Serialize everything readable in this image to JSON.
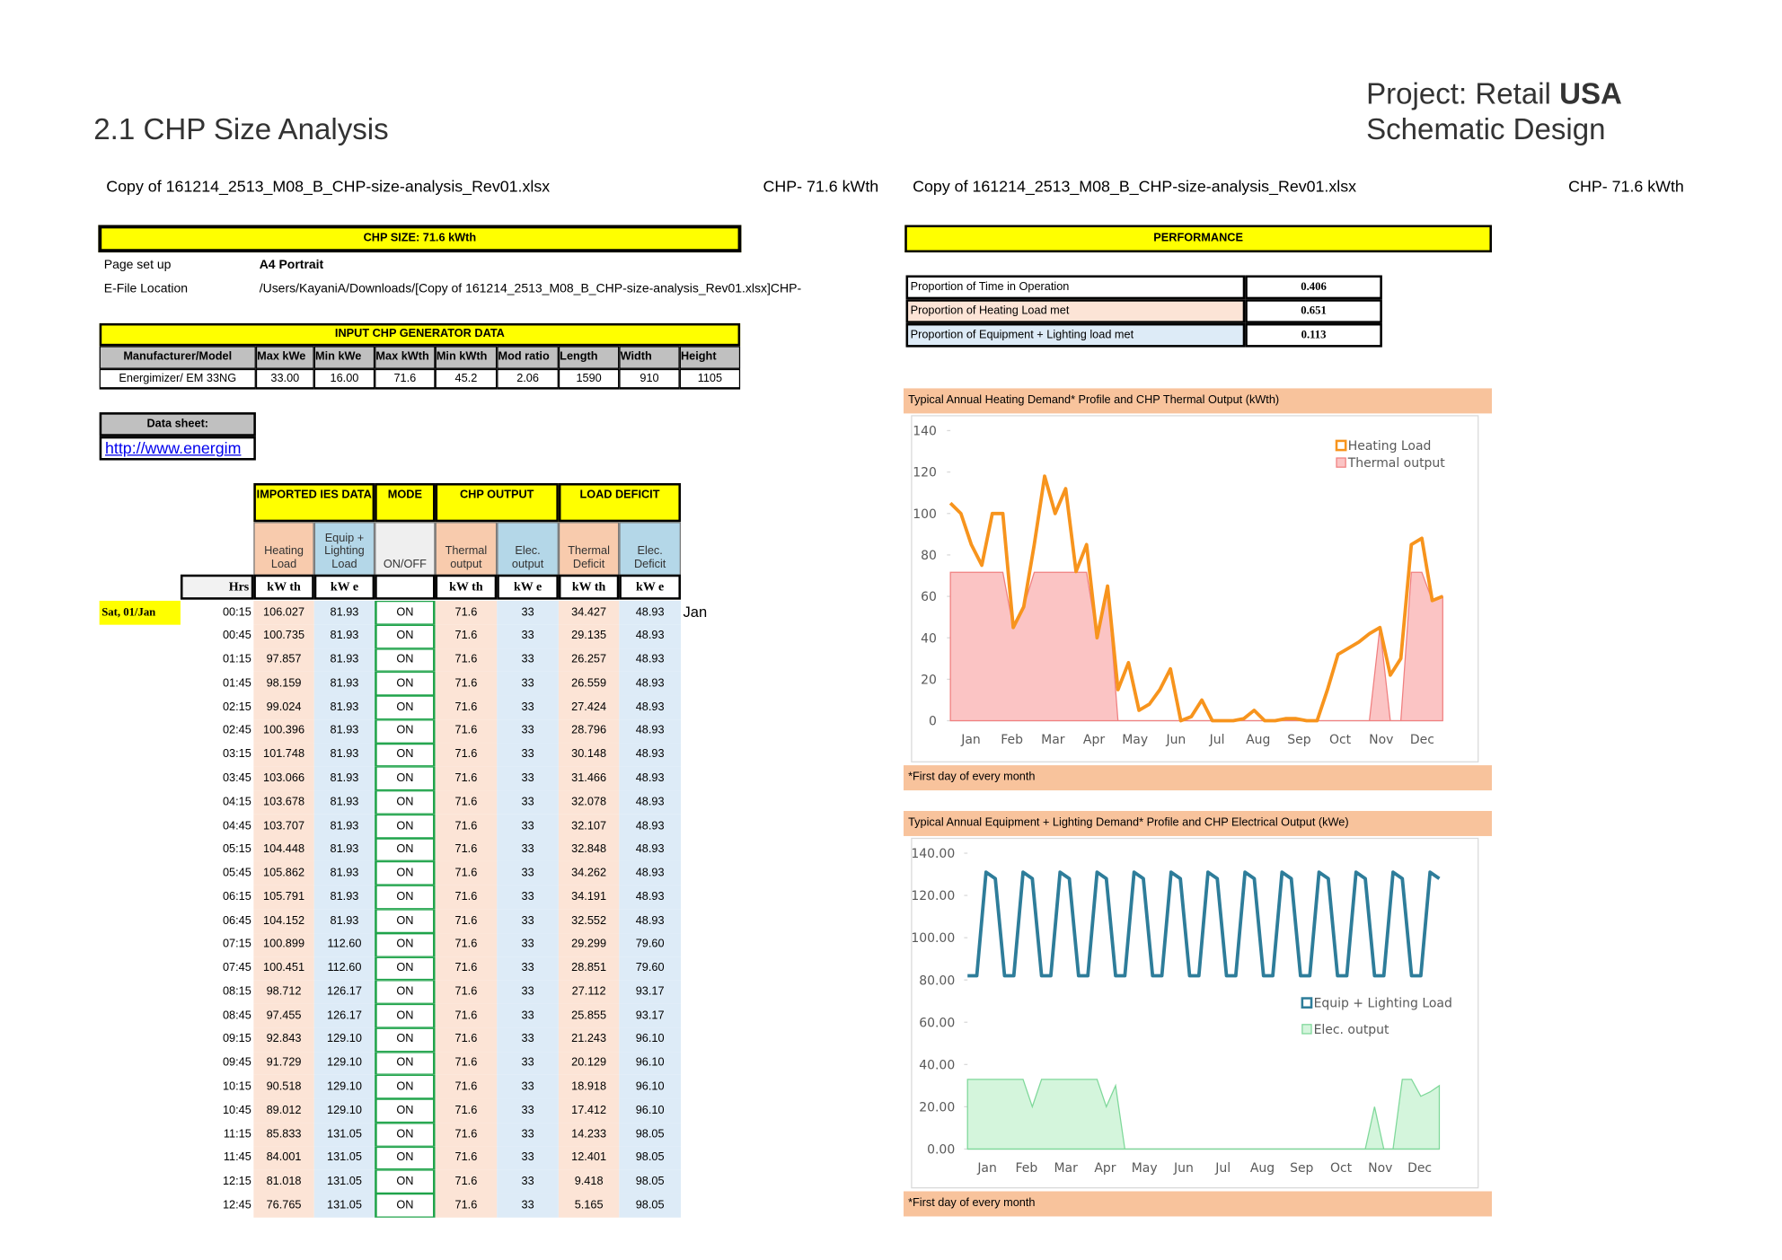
{
  "header": {
    "title": "2.1 CHP Size Analysis",
    "project": "Project: Retail",
    "project_name": "USA",
    "stage": "Schematic Design"
  },
  "file_bar": {
    "left_file": "Copy of 161214_2513_M08_B_CHP-size-analysis_Rev01.xlsx",
    "left_size": "CHP- 71.6 kWth",
    "right_file": "Copy of 161214_2513_M08_B_CHP-size-analysis_Rev01.xlsx",
    "right_size": "CHP- 71.6 kWth"
  },
  "chp_size": "CHP SIZE: 71.6 kWth",
  "setup": [
    [
      "Page set up",
      "A4 Portrait"
    ],
    [
      "E-File Location",
      "/Users/KayaniA/Downloads/[Copy of 161214_2513_M08_B_CHP-size-analysis_Rev01.xlsx]CHP-"
    ]
  ],
  "generator": {
    "title": "INPUT CHP GENERATOR DATA",
    "headers": [
      "Manufacturer/Model",
      "Max kWe",
      "Min kWe",
      "Max kWth",
      "Min kWth",
      "Mod ratio",
      "Length",
      "Width",
      "Height"
    ],
    "row": [
      "Energimizer/ EM 33NG",
      "33.00",
      "16.00",
      "71.6",
      "45.2",
      "2.06",
      "1590",
      "910",
      "1105"
    ]
  },
  "datasheet": {
    "label": "Data sheet:",
    "link": "http://www.energim"
  },
  "load_table": {
    "groups": [
      "IMPORTED IES DATA",
      "MODE",
      "CHP OUTPUT",
      "LOAD DEFICIT"
    ],
    "columns": [
      "Heating Load",
      "Equip + Lighting Load",
      "ON/OFF",
      "Thermal output",
      "Elec. output",
      "Thermal Deficit",
      "Elec. Deficit"
    ],
    "units": [
      "Hrs",
      "kW th",
      "kW e",
      "kW th",
      "kW e",
      "kW th",
      "kW e"
    ],
    "day": "Sat, 01/Jan",
    "month": "Jan",
    "rows": [
      [
        "00:15",
        "106.027",
        "81.93",
        "ON",
        "71.6",
        "33",
        "34.427",
        "48.93"
      ],
      [
        "00:45",
        "100.735",
        "81.93",
        "ON",
        "71.6",
        "33",
        "29.135",
        "48.93"
      ],
      [
        "01:15",
        "97.857",
        "81.93",
        "ON",
        "71.6",
        "33",
        "26.257",
        "48.93"
      ],
      [
        "01:45",
        "98.159",
        "81.93",
        "ON",
        "71.6",
        "33",
        "26.559",
        "48.93"
      ],
      [
        "02:15",
        "99.024",
        "81.93",
        "ON",
        "71.6",
        "33",
        "27.424",
        "48.93"
      ],
      [
        "02:45",
        "100.396",
        "81.93",
        "ON",
        "71.6",
        "33",
        "28.796",
        "48.93"
      ],
      [
        "03:15",
        "101.748",
        "81.93",
        "ON",
        "71.6",
        "33",
        "30.148",
        "48.93"
      ],
      [
        "03:45",
        "103.066",
        "81.93",
        "ON",
        "71.6",
        "33",
        "31.466",
        "48.93"
      ],
      [
        "04:15",
        "103.678",
        "81.93",
        "ON",
        "71.6",
        "33",
        "32.078",
        "48.93"
      ],
      [
        "04:45",
        "103.707",
        "81.93",
        "ON",
        "71.6",
        "33",
        "32.107",
        "48.93"
      ],
      [
        "05:15",
        "104.448",
        "81.93",
        "ON",
        "71.6",
        "33",
        "32.848",
        "48.93"
      ],
      [
        "05:45",
        "105.862",
        "81.93",
        "ON",
        "71.6",
        "33",
        "34.262",
        "48.93"
      ],
      [
        "06:15",
        "105.791",
        "81.93",
        "ON",
        "71.6",
        "33",
        "34.191",
        "48.93"
      ],
      [
        "06:45",
        "104.152",
        "81.93",
        "ON",
        "71.6",
        "33",
        "32.552",
        "48.93"
      ],
      [
        "07:15",
        "100.899",
        "112.60",
        "ON",
        "71.6",
        "33",
        "29.299",
        "79.60"
      ],
      [
        "07:45",
        "100.451",
        "112.60",
        "ON",
        "71.6",
        "33",
        "28.851",
        "79.60"
      ],
      [
        "08:15",
        "98.712",
        "126.17",
        "ON",
        "71.6",
        "33",
        "27.112",
        "93.17"
      ],
      [
        "08:45",
        "97.455",
        "126.17",
        "ON",
        "71.6",
        "33",
        "25.855",
        "93.17"
      ],
      [
        "09:15",
        "92.843",
        "129.10",
        "ON",
        "71.6",
        "33",
        "21.243",
        "96.10"
      ],
      [
        "09:45",
        "91.729",
        "129.10",
        "ON",
        "71.6",
        "33",
        "20.129",
        "96.10"
      ],
      [
        "10:15",
        "90.518",
        "129.10",
        "ON",
        "71.6",
        "33",
        "18.918",
        "96.10"
      ],
      [
        "10:45",
        "89.012",
        "129.10",
        "ON",
        "71.6",
        "33",
        "17.412",
        "96.10"
      ],
      [
        "11:15",
        "85.833",
        "131.05",
        "ON",
        "71.6",
        "33",
        "14.233",
        "98.05"
      ],
      [
        "11:45",
        "84.001",
        "131.05",
        "ON",
        "71.6",
        "33",
        "12.401",
        "98.05"
      ],
      [
        "12:15",
        "81.018",
        "131.05",
        "ON",
        "71.6",
        "33",
        "9.418",
        "98.05"
      ],
      [
        "12:45",
        "76.765",
        "131.05",
        "ON",
        "71.6",
        "33",
        "5.165",
        "98.05"
      ]
    ]
  },
  "performance": {
    "title": "PERFORMANCE",
    "rows": [
      [
        "Proportion of Time in Operation",
        "0.406"
      ],
      [
        "Proportion of Heating Load met",
        "0.651"
      ],
      [
        "Proportion of Equipment + Lighting load met",
        "0.113"
      ]
    ]
  },
  "charts": [
    {
      "type": "line",
      "title": "Typical Annual Heating Demand* Profile and CHP Thermal Output (kWth)",
      "footnote": "*First day of every month",
      "categories": [
        "Jan",
        "Feb",
        "Mar",
        "Apr",
        "May",
        "Jun",
        "Jul",
        "Aug",
        "Sep",
        "Oct",
        "Nov",
        "Dec"
      ],
      "ylim": [
        0,
        140
      ],
      "yticks": [
        0,
        20,
        40,
        60,
        80,
        100,
        120,
        140
      ],
      "series": [
        {
          "name": "Heating Load",
          "color": "#f7941d",
          "kind": "line",
          "values": [
            105,
            100,
            85,
            75,
            100,
            100,
            45,
            55,
            85,
            118,
            100,
            112,
            72,
            85,
            40,
            65,
            15,
            28,
            5,
            8,
            15,
            25,
            0,
            2,
            10,
            0,
            0,
            0,
            1,
            5,
            0,
            0,
            1,
            1,
            0,
            0,
            15,
            32,
            35,
            38,
            42,
            45,
            22,
            30,
            85,
            88,
            58,
            60
          ]
        },
        {
          "name": "Thermal output",
          "color": "#f08080",
          "fill": "#fbc4c4",
          "kind": "area",
          "values": [
            71.6,
            71.6,
            71.6,
            71.6,
            71.6,
            71.6,
            45,
            55,
            71.6,
            71.6,
            71.6,
            71.6,
            71.6,
            71.6,
            40,
            65,
            0,
            0,
            0,
            0,
            0,
            0,
            0,
            0,
            0,
            0,
            0,
            0,
            0,
            0,
            0,
            0,
            0,
            0,
            0,
            0,
            0,
            0,
            0,
            0,
            0,
            45,
            0,
            0,
            71.6,
            71.6,
            58,
            60
          ]
        }
      ]
    },
    {
      "type": "line",
      "title": "Typical Annual Equipment + Lighting Demand* Profile and CHP Electrical Output (kWe)",
      "footnote": "*First day of every month",
      "categories": [
        "Jan",
        "Feb",
        "Mar",
        "Apr",
        "May",
        "Jun",
        "Jul",
        "Aug",
        "Sep",
        "Oct",
        "Nov",
        "Dec"
      ],
      "ylim": [
        0,
        140
      ],
      "yticks": [
        {
          "value": 0,
          "label": "0.00"
        },
        {
          "value": 20,
          "label": "20.00"
        },
        {
          "value": 40,
          "label": "40.00"
        },
        {
          "value": 60,
          "label": "60.00"
        },
        {
          "value": 80,
          "label": "80.00"
        },
        {
          "value": 100,
          "label": "100.00"
        },
        {
          "value": 120,
          "label": "120.00"
        },
        {
          "value": 140,
          "label": "140.00"
        }
      ],
      "series": [
        {
          "name": "Equip + Lighting Load",
          "color": "#2e7d9a",
          "kind": "line",
          "values": [
            82,
            82,
            131,
            128,
            82,
            82,
            131,
            128,
            82,
            82,
            131,
            128,
            82,
            82,
            131,
            128,
            82,
            82,
            131,
            128,
            82,
            82,
            131,
            128,
            82,
            82,
            131,
            128,
            82,
            82,
            131,
            128,
            82,
            82,
            131,
            128,
            82,
            82,
            131,
            128,
            82,
            82,
            131,
            128,
            82,
            82,
            131,
            128,
            82,
            82,
            131,
            128
          ]
        },
        {
          "name": "Elec. output",
          "color": "#7fd89a",
          "fill": "#d4f5dc",
          "kind": "area",
          "values": [
            33,
            33,
            33,
            33,
            33,
            33,
            33,
            20,
            33,
            33,
            33,
            33,
            33,
            33,
            33,
            20,
            30,
            0,
            0,
            0,
            0,
            0,
            0,
            0,
            0,
            0,
            0,
            0,
            0,
            0,
            0,
            0,
            0,
            0,
            0,
            0,
            0,
            0,
            0,
            0,
            0,
            0,
            0,
            0,
            20,
            0,
            0,
            33,
            33,
            25,
            27,
            30
          ]
        }
      ]
    }
  ]
}
